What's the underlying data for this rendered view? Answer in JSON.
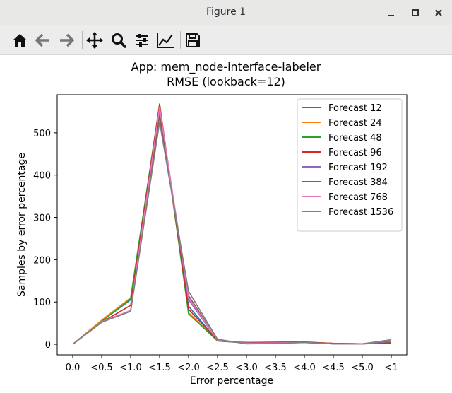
{
  "window": {
    "title": "Figure 1"
  },
  "toolbar": {
    "buttons": [
      {
        "name": "home-icon"
      },
      {
        "name": "back-arrow-icon"
      },
      {
        "name": "forward-arrow-icon"
      },
      {
        "name": "pan-move-icon"
      },
      {
        "name": "zoom-magnifier-icon"
      },
      {
        "name": "configure-subplots-icon"
      },
      {
        "name": "edit-axis-icon"
      },
      {
        "name": "save-disk-icon"
      }
    ]
  },
  "chart_data": {
    "type": "line",
    "title": "App: mem_node-interface-labeler",
    "subtitle": "RMSE (lookback=12)",
    "xlabel": "Error percentage",
    "ylabel": "Samples by error percentage",
    "categories": [
      "0.0",
      "<0.5",
      "<1.0",
      "<1.5",
      "<2.0",
      "<2.5",
      "<3.0",
      "<3.5",
      "<4.0",
      "<4.5",
      "<5.0",
      "<1"
    ],
    "ylim": [
      -25,
      590
    ],
    "yticks": [
      0,
      100,
      200,
      300,
      400,
      500
    ],
    "grid": false,
    "legend_position": "top-right",
    "series": [
      {
        "name": "Forecast 12",
        "color": "#1f77b4",
        "values": [
          0,
          55,
          105,
          555,
          90,
          8,
          3,
          4,
          5,
          2,
          1,
          8
        ]
      },
      {
        "name": "Forecast 24",
        "color": "#ff7f0e",
        "values": [
          0,
          57,
          110,
          560,
          75,
          8,
          5,
          5,
          6,
          2,
          1,
          3
        ]
      },
      {
        "name": "Forecast 48",
        "color": "#2ca02c",
        "values": [
          0,
          54,
          107,
          568,
          72,
          8,
          3,
          3,
          5,
          2,
          1,
          4
        ]
      },
      {
        "name": "Forecast 96",
        "color": "#d62728",
        "values": [
          0,
          52,
          92,
          568,
          83,
          9,
          3,
          5,
          5,
          2,
          1,
          3
        ]
      },
      {
        "name": "Forecast 192",
        "color": "#9467bd",
        "values": [
          0,
          52,
          80,
          545,
          105,
          10,
          3,
          3,
          4,
          1,
          1,
          7
        ]
      },
      {
        "name": "Forecast 384",
        "color": "#8c564b",
        "values": [
          0,
          52,
          78,
          540,
          115,
          10,
          2,
          3,
          5,
          1,
          1,
          9
        ]
      },
      {
        "name": "Forecast 768",
        "color": "#e377c2",
        "values": [
          0,
          53,
          80,
          560,
          110,
          10,
          2,
          3,
          4,
          1,
          1,
          10
        ]
      },
      {
        "name": "Forecast 1536",
        "color": "#7f7f7f",
        "values": [
          0,
          52,
          78,
          525,
          125,
          12,
          1,
          2,
          4,
          1,
          1,
          11
        ]
      }
    ]
  }
}
